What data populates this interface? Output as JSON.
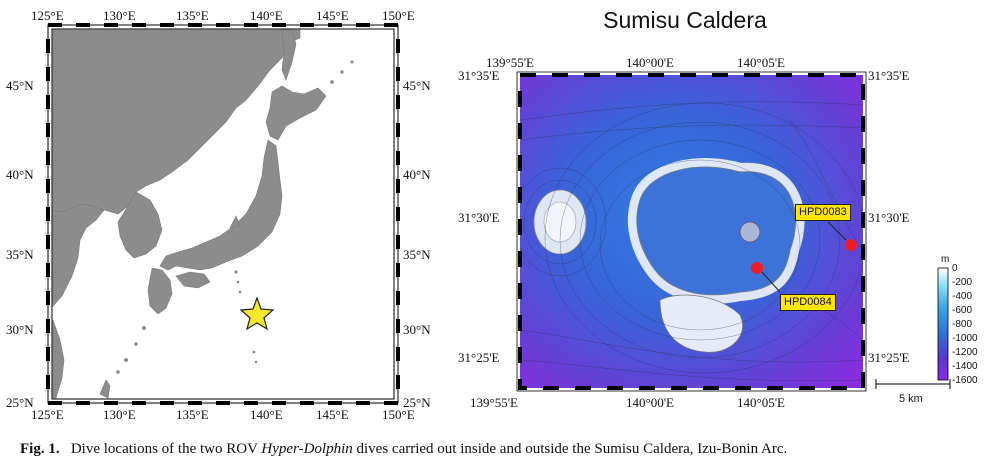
{
  "left_map": {
    "top_ticks": [
      "125°E",
      "130°E",
      "135°E",
      "140°E",
      "145°E",
      "150°E"
    ],
    "bottom_ticks": [
      "125°E",
      "130°E",
      "135°E",
      "140°E",
      "145°E",
      "150°E"
    ],
    "left_ticks": [
      "45°N",
      "40°N",
      "35°N",
      "30°N",
      "25°N"
    ],
    "right_ticks": [
      "45°N",
      "40°N",
      "35°N",
      "30°N",
      "25°N"
    ],
    "star_icon": "star-icon",
    "colors": {
      "land": "#8c8c8c",
      "star": "#f5e82a"
    }
  },
  "right_map": {
    "title": "Sumisu Caldera",
    "top_ticks": [
      "139°55'E",
      "140°00'E",
      "140°05'E"
    ],
    "bottom_ticks": [
      "139°55'E",
      "140°00'E",
      "140°05'E"
    ],
    "left_ticks": [
      "31°35'E",
      "31°30'E",
      "31°25'E"
    ],
    "right_ticks": [
      "31°35'E",
      "31°30'E",
      "31°25'E"
    ],
    "sites": [
      {
        "label": "HPD0083"
      },
      {
        "label": "HPD0084"
      }
    ],
    "scale_label": "5 km",
    "colorbar": {
      "unit": "m",
      "ticks": [
        "0",
        "-200",
        "-400",
        "-600",
        "-800",
        "-1000",
        "-1200",
        "-1400",
        "-1600"
      ],
      "colors": [
        "#ffffff",
        "#8ee0f5",
        "#3aa6e6",
        "#2f6fd8",
        "#5a36cf",
        "#8a2be2"
      ]
    },
    "colors": {
      "marker": "#ee1c25",
      "callout": "#ffe600"
    }
  },
  "caption": {
    "fig": "Fig.  1.",
    "text_before": "Dive locations of the two ROV ",
    "italic": "Hyper-Dolphin",
    "text_after": " dives carried out inside and outside the Sumisu Caldera, Izu-Bonin Arc."
  }
}
